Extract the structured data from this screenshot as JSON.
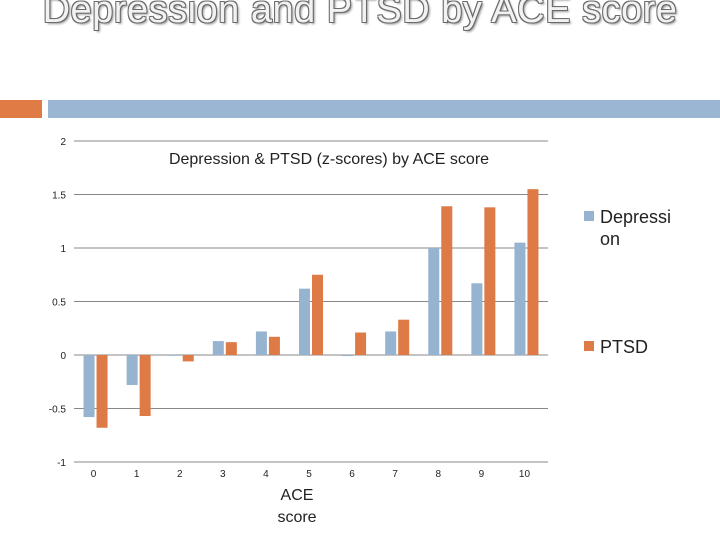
{
  "slide_title": "Depression and PTSD by ACE score",
  "colors": {
    "accent_orange": "#e07b45",
    "accent_blue": "#9ab6d3",
    "depression": "#96b3d0",
    "ptsd": "#dd7a45"
  },
  "chart_data": {
    "type": "bar",
    "title": "Depression & PTSD (z-scores) by ACE score",
    "xlabel": "ACE score",
    "ylabel": "",
    "categories": [
      "0",
      "1",
      "2",
      "3",
      "4",
      "5",
      "6",
      "7",
      "8",
      "9",
      "10"
    ],
    "series": [
      {
        "name": "Depression",
        "values": [
          -0.58,
          -0.28,
          0.0,
          0.13,
          0.22,
          0.62,
          -0.01,
          0.22,
          1.0,
          0.67,
          1.05
        ]
      },
      {
        "name": "PTSD",
        "values": [
          -0.68,
          -0.57,
          -0.06,
          0.12,
          0.17,
          0.75,
          0.21,
          0.33,
          1.39,
          1.38,
          1.55
        ]
      }
    ],
    "ylim": [
      -1,
      2
    ],
    "yticks": [
      2,
      1.5,
      1,
      0.5,
      0,
      -0.5,
      -1
    ],
    "ytick_labels": [
      "2",
      "1.5",
      "1",
      "0.5",
      "0",
      "-0.5",
      "-1"
    ],
    "grid": true,
    "legend_position": "right",
    "legend_labels": [
      "Depressi on",
      "PTSD"
    ]
  }
}
